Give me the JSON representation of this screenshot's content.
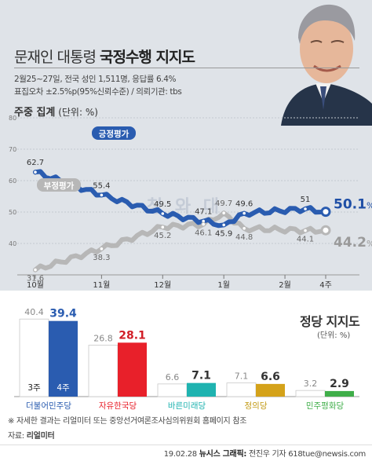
{
  "header": {
    "title_part1": "문재인 대통령",
    "title_part2": "국정수행 지지도",
    "survey_line1": "2월25~27일, 전국 성인 1,511명, 응답률 6.4%",
    "survey_line2": "표집오차 ±2.5%p(95%신뢰수준) / 의뢰기관: tbs",
    "weekly_label": "주중 집계",
    "weekly_unit": "(단위: %)"
  },
  "watermark": "청 와 대",
  "footnote": "※ 자세한 결과는 리얼미터 또는 중앙선거여론조사심의위원회 홈페이지 참조",
  "source_label": "자료:",
  "source_value": "리얼미터",
  "footer": {
    "date": "19.02.28",
    "credit_label": "뉴시스 그래픽:",
    "credit": "전진우 기자 618tue@newsis.com"
  },
  "party_section": {
    "title": "정당 지지도",
    "unit": "(단위: %)"
  },
  "colors": {
    "positive": "#2a5cb0",
    "negative": "#b7b7b7",
    "band": "#dfe3e8"
  },
  "chart_data": [
    {
      "type": "line",
      "ylim": [
        30,
        80
      ],
      "yticks": [
        30,
        40,
        50,
        60,
        70,
        80
      ],
      "grid": true,
      "x_month_ticks": [
        "10월",
        "11월",
        "12월",
        "1월",
        "2월",
        "4주"
      ],
      "series": [
        {
          "name": "긍정평가",
          "color": "#2a5cb0",
          "points": [
            {
              "i": 0,
              "y": 62.7,
              "label": "62.7"
            },
            {
              "i": 13,
              "y": 55.4,
              "label": "55.4"
            },
            {
              "i": 25,
              "y": 49.5,
              "label": "49.5"
            },
            {
              "i": 33,
              "y": 47.1,
              "label": "47.1"
            },
            {
              "i": 37,
              "y": 45.9,
              "label": "45.9"
            },
            {
              "i": 41,
              "y": 49.6,
              "label": "49.6"
            },
            {
              "i": 53,
              "y": 51,
              "label": "51"
            },
            {
              "i": 57,
              "y": 50.1,
              "label": "50.1",
              "final": true
            }
          ]
        },
        {
          "name": "부정평가",
          "color": "#b7b7b7",
          "points": [
            {
              "i": 0,
              "y": 31.6,
              "label": "31.6"
            },
            {
              "i": 13,
              "y": 38.3,
              "label": "38.3"
            },
            {
              "i": 25,
              "y": 45.2,
              "label": "45.2"
            },
            {
              "i": 33,
              "y": 46.1,
              "label": "46.1"
            },
            {
              "i": 37,
              "y": 49.7,
              "label": "49.7"
            },
            {
              "i": 41,
              "y": 44.8,
              "label": "44.8"
            },
            {
              "i": 53,
              "y": 44.1,
              "label": "44.1"
            },
            {
              "i": 57,
              "y": 44.2,
              "label": "44.2",
              "final": true
            }
          ]
        }
      ]
    },
    {
      "type": "bar",
      "title": "정당 지지도",
      "ylim": [
        0,
        45
      ],
      "categories": [
        "더불어민주당",
        "자유한국당",
        "바른미래당",
        "정의당",
        "민주평화당"
      ],
      "category_colors": [
        "#2a5cb0",
        "#e8202a",
        "#1fb3b0",
        "#d4a21a",
        "#3fae49"
      ],
      "series": [
        {
          "name": "3주",
          "values": [
            40.4,
            26.8,
            6.6,
            7.1,
            3.2
          ]
        },
        {
          "name": "4주",
          "values": [
            39.4,
            28.1,
            7.1,
            6.6,
            2.9
          ]
        }
      ]
    }
  ]
}
